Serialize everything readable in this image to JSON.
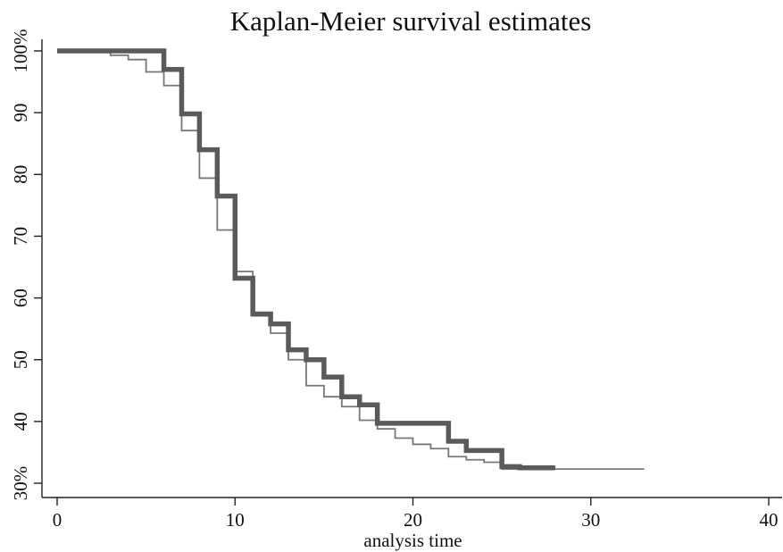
{
  "chart_data": {
    "type": "line",
    "title": "Kaplan-Meier survival estimates",
    "xlabel": "analysis time",
    "ylabel": "",
    "xlim": [
      0,
      40
    ],
    "ylim": [
      30,
      100
    ],
    "x_ticks": [
      0,
      10,
      20,
      30,
      40
    ],
    "y_ticks": [
      30,
      40,
      50,
      60,
      70,
      80,
      90,
      100
    ],
    "y_tick_labels": [
      "30%",
      "40",
      "50",
      "60",
      "70",
      "80",
      "90",
      "100%"
    ],
    "grid": false,
    "series": [
      {
        "style": "thick",
        "color": "#5a5a5a",
        "steps": [
          [
            0,
            100
          ],
          [
            6,
            97
          ],
          [
            7,
            89.8
          ],
          [
            8,
            84
          ],
          [
            9,
            76.5
          ],
          [
            10,
            63.2
          ],
          [
            11,
            57.4
          ],
          [
            12,
            55.8
          ],
          [
            13,
            51.6
          ],
          [
            14,
            50
          ],
          [
            15,
            47.2
          ],
          [
            16,
            44
          ],
          [
            17,
            42.7
          ],
          [
            18,
            39.7
          ],
          [
            22,
            36.8
          ],
          [
            23,
            35.3
          ],
          [
            25,
            32.7
          ],
          [
            26,
            32.5
          ],
          [
            28,
            32.5
          ]
        ]
      },
      {
        "style": "thin",
        "color": "#777777",
        "steps": [
          [
            0,
            100
          ],
          [
            3,
            99.3
          ],
          [
            4,
            98.6
          ],
          [
            5,
            96.6
          ],
          [
            6,
            94.4
          ],
          [
            7,
            87.1
          ],
          [
            8,
            79.4
          ],
          [
            9,
            71
          ],
          [
            10,
            64.3
          ],
          [
            11,
            57.1
          ],
          [
            12,
            54.3
          ],
          [
            13,
            50
          ],
          [
            14,
            45.8
          ],
          [
            15,
            44
          ],
          [
            16,
            42.4
          ],
          [
            17,
            40.2
          ],
          [
            18,
            38.8
          ],
          [
            19,
            37.3
          ],
          [
            20,
            36.3
          ],
          [
            21,
            35.6
          ],
          [
            22,
            34.3
          ],
          [
            23,
            33.8
          ],
          [
            24,
            33.4
          ],
          [
            25,
            32.3
          ],
          [
            33,
            32.3
          ]
        ]
      }
    ]
  }
}
